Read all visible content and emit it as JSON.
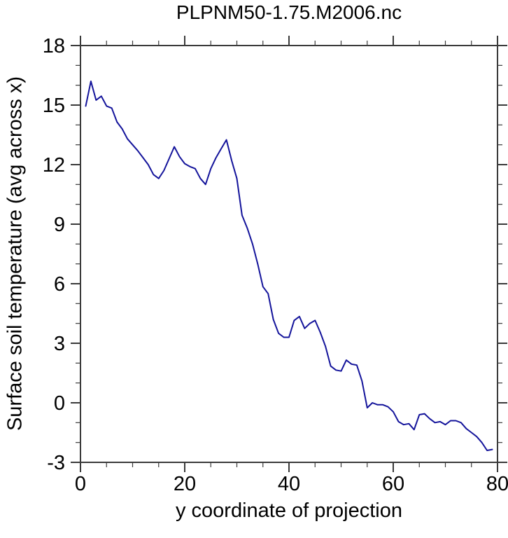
{
  "chart_data": {
    "type": "line",
    "title": "PLPNM50-1.75.M2006.nc",
    "xlabel": "y coordinate of projection",
    "ylabel": "Surface soil temperature (avg across x)",
    "xlim": [
      0,
      80
    ],
    "ylim": [
      -3,
      18
    ],
    "x_major_ticks": [
      0,
      20,
      40,
      60,
      80
    ],
    "x_minor_step": 5,
    "y_major_ticks": [
      -3,
      0,
      3,
      6,
      9,
      12,
      15,
      18
    ],
    "y_minor_step": 1,
    "grid": false,
    "legend": "none",
    "frame": "box-with-outward-ticks-all-sides",
    "line_color": "#14149B",
    "axis_color": "#3a3a3a",
    "series": [
      {
        "name": "surface soil temperature (avg across x)",
        "x": [
          1,
          2,
          3,
          4,
          5,
          6,
          7,
          8,
          9,
          10,
          11,
          12,
          13,
          14,
          15,
          16,
          17,
          18,
          19,
          20,
          21,
          22,
          23,
          24,
          25,
          26,
          27,
          28,
          29,
          30,
          31,
          32,
          33,
          34,
          35,
          36,
          37,
          38,
          39,
          40,
          41,
          42,
          43,
          44,
          45,
          46,
          47,
          48,
          49,
          50,
          51,
          52,
          53,
          54,
          55,
          56,
          57,
          58,
          59,
          60,
          61,
          62,
          63,
          64,
          65,
          66,
          67,
          68,
          69,
          70,
          71,
          72,
          73,
          74,
          75,
          76,
          77,
          78,
          79
        ],
        "y": [
          14.95,
          16.2,
          15.25,
          15.45,
          14.95,
          14.85,
          14.15,
          13.8,
          13.3,
          13.0,
          12.7,
          12.35,
          12.0,
          11.5,
          11.3,
          11.7,
          12.3,
          12.9,
          12.4,
          12.05,
          11.9,
          11.8,
          11.3,
          11.0,
          11.8,
          12.35,
          12.8,
          13.25,
          12.2,
          11.3,
          9.45,
          8.8,
          8.0,
          7.0,
          5.85,
          5.5,
          4.2,
          3.5,
          3.3,
          3.3,
          4.15,
          4.35,
          3.75,
          4.0,
          4.15,
          3.55,
          2.85,
          1.85,
          1.65,
          1.6,
          2.15,
          1.95,
          1.9,
          1.1,
          -0.25,
          0.0,
          -0.1,
          -0.1,
          -0.2,
          -0.45,
          -0.95,
          -1.1,
          -1.05,
          -1.35,
          -0.6,
          -0.55,
          -0.8,
          -1.0,
          -0.95,
          -1.1,
          -0.9,
          -0.9,
          -1.0,
          -1.3,
          -1.5,
          -1.7,
          -2.0,
          -2.4,
          -2.35
        ]
      }
    ]
  }
}
